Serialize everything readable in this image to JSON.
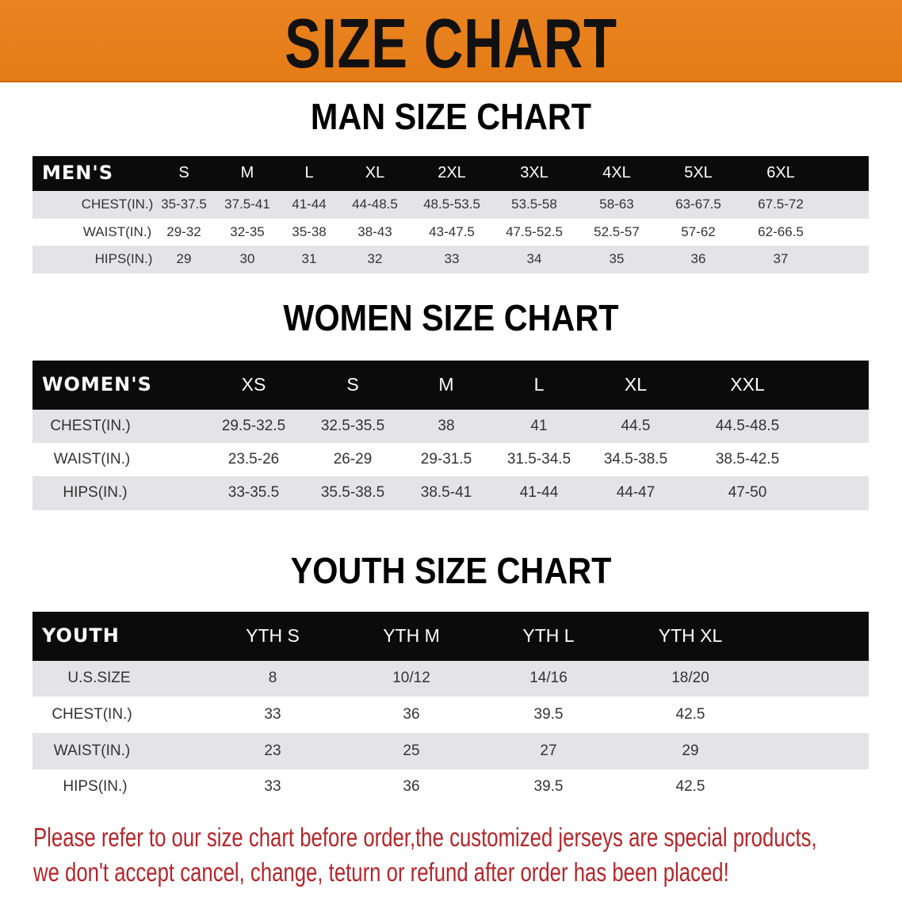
{
  "banner": {
    "title": "SIZE CHART",
    "color": "#e8801c"
  },
  "tables": [
    {
      "title": "MAN SIZE CHART",
      "header_label": "MEN'S",
      "sizes": [
        "S",
        "M",
        "L",
        "XL",
        "2XL",
        "3XL",
        "4XL",
        "5XL",
        "6XL"
      ],
      "rows": [
        {
          "label": "CHEST(IN.)",
          "values": [
            "35-37.5",
            "37.5-41",
            "41-44",
            "44-48.5",
            "48.5-53.5",
            "53.5-58",
            "58-63",
            "63-67.5",
            "67.5-72"
          ]
        },
        {
          "label": "WAIST(IN.)",
          "values": [
            "29-32",
            "32-35",
            "35-38",
            "38-43",
            "43-47.5",
            "47.5-52.5",
            "52.5-57",
            "57-62",
            "62-66.5"
          ]
        },
        {
          "label": "HIPS(IN.)",
          "values": [
            "29",
            "30",
            "31",
            "32",
            "33",
            "34",
            "35",
            "36",
            "37"
          ]
        }
      ]
    },
    {
      "title": "WOMEN SIZE CHART",
      "header_label": "WOMEN'S",
      "sizes": [
        "XS",
        "S",
        "M",
        "L",
        "XL",
        "XXL"
      ],
      "rows": [
        {
          "label": "CHEST(IN.)",
          "values": [
            "29.5-32.5",
            "32.5-35.5",
            "38",
            "41",
            "44.5",
            "44.5-48.5"
          ]
        },
        {
          "label": "WAIST(IN.)",
          "values": [
            "23.5-26",
            "26-29",
            "29-31.5",
            "31.5-34.5",
            "34.5-38.5",
            "38.5-42.5"
          ]
        },
        {
          "label": "HIPS(IN.)",
          "values": [
            "33-35.5",
            "35.5-38.5",
            "38.5-41",
            "41-44",
            "44-47",
            "47-50"
          ]
        }
      ]
    },
    {
      "title": "YOUTH SIZE CHART",
      "header_label": "YOUTH",
      "sizes": [
        "YTH S",
        "YTH M",
        "YTH L",
        "YTH XL"
      ],
      "rows": [
        {
          "label": "U.S.SIZE",
          "values": [
            "8",
            "10/12",
            "14/16",
            "18/20"
          ]
        },
        {
          "label": "CHEST(IN.)",
          "values": [
            "33",
            "36",
            "39.5",
            "42.5"
          ]
        },
        {
          "label": "WAIST(IN.)",
          "values": [
            "23",
            "25",
            "27",
            "29"
          ]
        },
        {
          "label": "HIPS(IN.)",
          "values": [
            "33",
            "36",
            "39.5",
            "42.5"
          ]
        }
      ]
    }
  ],
  "notice": {
    "line1": "Please refer to our size chart before order,the customized jerseys are special products,",
    "line2": "we don't accept cancel, change, teturn or refund after order has been placed!",
    "color": "#b3262a"
  }
}
